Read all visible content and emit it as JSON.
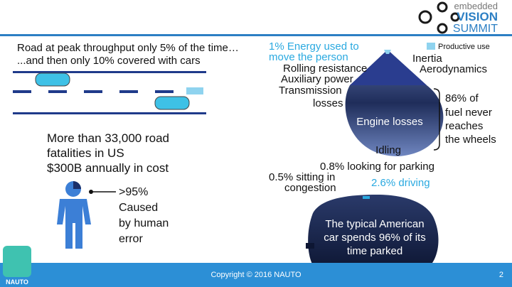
{
  "header": {
    "logo": [
      "embedded",
      "VISION",
      "SUMMIT"
    ]
  },
  "road": {
    "lines": [
      "Road at peak throughput only 5% of the time…",
      "...and then only 10% covered with cars"
    ]
  },
  "fatalities": {
    "lines": [
      "More than 33,000 road",
      "fatalities in US",
      "$300B annually in cost"
    ]
  },
  "human_error": {
    "lines": [
      ">95%",
      "Caused",
      "by human",
      "error"
    ]
  },
  "energy": {
    "productive": [
      "1% Energy used to",
      "move the person"
    ],
    "legend": "Productive use",
    "labels": [
      "Inertia",
      "Rolling resistance",
      "Aerodynamics",
      "Auxiliary power",
      "Transmission",
      "losses"
    ],
    "engine": "Engine losses",
    "idling": "Idling",
    "note": [
      "86% of",
      "fuel never",
      "reaches",
      "the wheels"
    ]
  },
  "parking": {
    "looking": "0.8% looking for parking",
    "congestion": [
      "0.5% sitting in",
      "congestion"
    ],
    "driving": "2.6% driving",
    "car_text": [
      "The typical American",
      "car spends 96% of its",
      "time parked"
    ]
  },
  "footer": {
    "copyright": "Copyright © 2016 NAUTO",
    "page": "2",
    "brand": "NAUTO"
  }
}
